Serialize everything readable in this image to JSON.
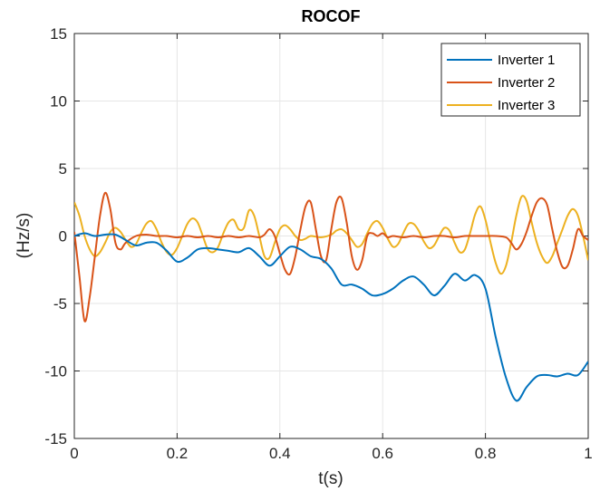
{
  "chart_data": {
    "type": "line",
    "title": "ROCOF",
    "xlabel": "t(s)",
    "ylabel": "(Hz/s)",
    "xlim": [
      0,
      1
    ],
    "ylim": [
      -15,
      15
    ],
    "xticks": [
      0,
      0.2,
      0.4,
      0.6,
      0.8,
      1
    ],
    "xtick_labels": [
      "0",
      "0.2",
      "0.4",
      "0.6",
      "0.8",
      "1"
    ],
    "yticks": [
      -15,
      -10,
      -5,
      0,
      5,
      10,
      15
    ],
    "ytick_labels": [
      "-15",
      "-10",
      "-5",
      "0",
      "5",
      "10",
      "15"
    ],
    "grid": true,
    "legend_position": "top-right",
    "series": [
      {
        "name": "Inverter 1",
        "color": "#0072BD",
        "x": [
          0,
          0.02,
          0.04,
          0.06,
          0.08,
          0.1,
          0.12,
          0.14,
          0.16,
          0.18,
          0.2,
          0.22,
          0.24,
          0.26,
          0.28,
          0.3,
          0.32,
          0.34,
          0.36,
          0.38,
          0.4,
          0.42,
          0.44,
          0.46,
          0.48,
          0.5,
          0.52,
          0.54,
          0.56,
          0.58,
          0.6,
          0.62,
          0.64,
          0.66,
          0.68,
          0.7,
          0.72,
          0.74,
          0.76,
          0.78,
          0.8,
          0.82,
          0.84,
          0.86,
          0.88,
          0.9,
          0.92,
          0.94,
          0.96,
          0.98,
          1.0
        ],
        "values": [
          0.0,
          0.2,
          0.0,
          0.1,
          0.1,
          -0.3,
          -0.7,
          -0.5,
          -0.5,
          -1.1,
          -1.9,
          -1.6,
          -1.0,
          -0.9,
          -1.0,
          -1.1,
          -1.2,
          -0.9,
          -1.5,
          -2.2,
          -1.5,
          -0.8,
          -1.0,
          -1.5,
          -1.7,
          -2.4,
          -3.6,
          -3.6,
          -3.9,
          -4.4,
          -4.3,
          -3.9,
          -3.3,
          -3.0,
          -3.6,
          -4.4,
          -3.7,
          -2.8,
          -3.3,
          -2.9,
          -3.9,
          -7.5,
          -10.5,
          -12.2,
          -11.2,
          -10.4,
          -10.3,
          -10.4,
          -10.2,
          -10.3,
          -9.3
        ]
      },
      {
        "name": "Inverter 2",
        "color": "#D95319",
        "x": [
          0,
          0.01,
          0.02,
          0.03,
          0.04,
          0.05,
          0.06,
          0.07,
          0.08,
          0.09,
          0.1,
          0.12,
          0.14,
          0.16,
          0.18,
          0.2,
          0.22,
          0.24,
          0.26,
          0.28,
          0.3,
          0.32,
          0.34,
          0.36,
          0.37,
          0.38,
          0.39,
          0.4,
          0.41,
          0.42,
          0.43,
          0.44,
          0.45,
          0.46,
          0.47,
          0.48,
          0.49,
          0.5,
          0.51,
          0.52,
          0.53,
          0.54,
          0.55,
          0.56,
          0.57,
          0.58,
          0.59,
          0.6,
          0.61,
          0.62,
          0.64,
          0.66,
          0.68,
          0.7,
          0.72,
          0.74,
          0.76,
          0.78,
          0.8,
          0.82,
          0.84,
          0.85,
          0.86,
          0.87,
          0.88,
          0.89,
          0.9,
          0.91,
          0.92,
          0.93,
          0.94,
          0.95,
          0.96,
          0.97,
          0.98,
          0.99,
          1.0
        ],
        "values": [
          0.3,
          -3.0,
          -6.3,
          -4.5,
          -1.5,
          1.5,
          3.2,
          2.0,
          -0.5,
          -1.0,
          -0.5,
          0.0,
          0.1,
          0.0,
          0.0,
          -0.1,
          0.0,
          -0.1,
          0.0,
          -0.1,
          0.0,
          -0.1,
          0.0,
          -0.1,
          0.1,
          0.5,
          0.0,
          -1.3,
          -2.5,
          -2.8,
          -1.5,
          0.5,
          2.2,
          2.5,
          0.5,
          -1.5,
          -1.8,
          0.5,
          2.5,
          2.8,
          1.0,
          -1.5,
          -2.5,
          -1.8,
          0.0,
          0.2,
          0.0,
          0.2,
          -0.1,
          0.0,
          -0.1,
          0.0,
          -0.1,
          0.0,
          0.0,
          -0.1,
          0.0,
          0.0,
          0.0,
          0.0,
          -0.1,
          -0.5,
          -1.0,
          -0.6,
          0.3,
          1.5,
          2.5,
          2.8,
          2.3,
          0.5,
          -1.2,
          -2.3,
          -2.2,
          -1.0,
          0.5,
          0.0,
          -0.3
        ]
      },
      {
        "name": "Inverter 3",
        "color": "#EDB120",
        "x": [
          0,
          0.01,
          0.02,
          0.03,
          0.04,
          0.05,
          0.06,
          0.07,
          0.08,
          0.09,
          0.1,
          0.11,
          0.12,
          0.13,
          0.14,
          0.15,
          0.16,
          0.17,
          0.18,
          0.19,
          0.2,
          0.21,
          0.22,
          0.23,
          0.24,
          0.25,
          0.26,
          0.27,
          0.28,
          0.29,
          0.3,
          0.31,
          0.32,
          0.33,
          0.34,
          0.35,
          0.36,
          0.37,
          0.38,
          0.39,
          0.4,
          0.41,
          0.42,
          0.43,
          0.44,
          0.45,
          0.46,
          0.48,
          0.5,
          0.51,
          0.52,
          0.53,
          0.54,
          0.55,
          0.56,
          0.57,
          0.58,
          0.59,
          0.6,
          0.61,
          0.62,
          0.63,
          0.64,
          0.65,
          0.66,
          0.67,
          0.68,
          0.69,
          0.7,
          0.71,
          0.72,
          0.73,
          0.74,
          0.75,
          0.76,
          0.77,
          0.78,
          0.79,
          0.8,
          0.81,
          0.82,
          0.83,
          0.84,
          0.85,
          0.86,
          0.87,
          0.88,
          0.89,
          0.9,
          0.91,
          0.92,
          0.93,
          0.94,
          0.95,
          0.96,
          0.97,
          0.98,
          0.99,
          1.0
        ],
        "values": [
          2.5,
          1.5,
          0.0,
          -1.0,
          -1.5,
          -1.2,
          -0.5,
          0.3,
          0.6,
          0.3,
          -0.3,
          -0.8,
          -0.6,
          0.2,
          0.9,
          1.1,
          0.5,
          -0.5,
          -1.2,
          -1.4,
          -0.9,
          0.0,
          0.9,
          1.3,
          1.0,
          0.0,
          -1.0,
          -1.2,
          -0.8,
          0.2,
          1.0,
          1.2,
          0.5,
          0.6,
          1.9,
          1.5,
          0.0,
          -1.5,
          -1.6,
          -0.5,
          0.5,
          0.8,
          0.5,
          0.0,
          -0.3,
          -0.2,
          0.0,
          -0.1,
          0.1,
          0.4,
          0.5,
          0.2,
          -0.3,
          -0.8,
          -0.6,
          0.2,
          0.9,
          1.1,
          0.6,
          -0.2,
          -0.8,
          -0.6,
          0.2,
          0.9,
          0.9,
          0.4,
          -0.4,
          -0.9,
          -0.7,
          0.0,
          0.6,
          0.4,
          -0.5,
          -1.2,
          -1.0,
          0.2,
          1.6,
          2.2,
          1.2,
          -0.5,
          -2.0,
          -2.8,
          -2.2,
          -0.5,
          1.5,
          2.9,
          2.6,
          1.0,
          -0.5,
          -1.5,
          -2.0,
          -1.5,
          -0.5,
          0.5,
          1.5,
          2.0,
          1.5,
          0.0,
          -1.8
        ]
      }
    ]
  }
}
